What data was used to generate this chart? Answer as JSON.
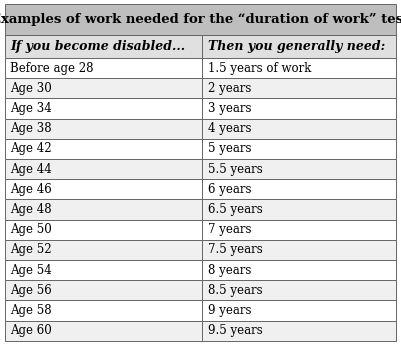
{
  "title": "Examples of work needed for the “duration of work” test",
  "col1_header": "If you become disabled...",
  "col2_header": "Then you generally need:",
  "rows": [
    [
      "Before age 28",
      "1.5 years of work"
    ],
    [
      "Age 30",
      "2 years"
    ],
    [
      "Age 34",
      "3 years"
    ],
    [
      "Age 38",
      "4 years"
    ],
    [
      "Age 42",
      "5 years"
    ],
    [
      "Age 44",
      "5.5 years"
    ],
    [
      "Age 46",
      "6 years"
    ],
    [
      "Age 48",
      "6.5 years"
    ],
    [
      "Age 50",
      "7 years"
    ],
    [
      "Age 52",
      "7.5 years"
    ],
    [
      "Age 54",
      "8 years"
    ],
    [
      "Age 56",
      "8.5 years"
    ],
    [
      "Age 58",
      "9 years"
    ],
    [
      "Age 60",
      "9.5 years"
    ]
  ],
  "title_bg": "#bebebe",
  "header_bg": "#e0e0e0",
  "row_bg_even": "#f0f0f0",
  "row_bg_odd": "#ffffff",
  "border_color": "#666666",
  "text_color": "#000000",
  "title_fontsize": 9.5,
  "header_fontsize": 9.0,
  "row_fontsize": 8.5,
  "col_split": 0.505
}
